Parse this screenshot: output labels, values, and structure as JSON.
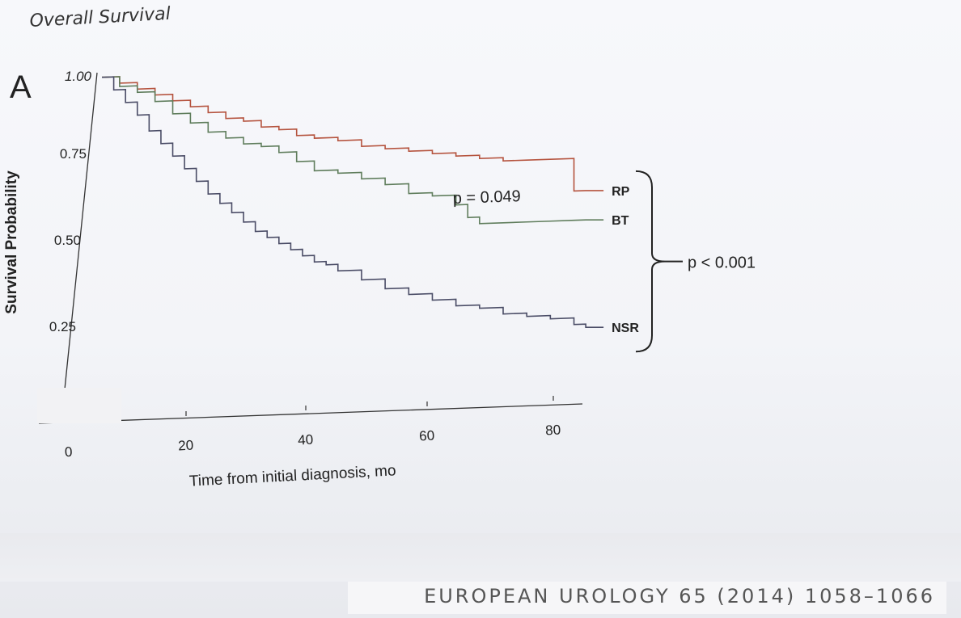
{
  "slide": {
    "title": "Overall Survival",
    "panel_label": "A",
    "citation": "EUROPEAN UROLOGY 65 (2014) 1058–1066"
  },
  "chart_data": {
    "type": "line",
    "step": true,
    "xlabel": "Time from initial diagnosis, mo",
    "ylabel": "Survival Probability",
    "xlim": [
      0,
      85
    ],
    "ylim": [
      0,
      1.0
    ],
    "x_ticks": [
      0,
      20,
      40,
      60,
      80
    ],
    "y_ticks": [
      "0.25",
      "0.50",
      "0.75",
      "1.00"
    ],
    "series": [
      {
        "name": "RP",
        "color": "#b5533e",
        "x": [
          0,
          3,
          6,
          9,
          12,
          15,
          18,
          21,
          24,
          27,
          30,
          33,
          36,
          40,
          44,
          48,
          52,
          56,
          60,
          64,
          68,
          72,
          76,
          80,
          82
        ],
        "y": [
          1.0,
          0.98,
          0.96,
          0.94,
          0.92,
          0.9,
          0.88,
          0.86,
          0.85,
          0.83,
          0.82,
          0.8,
          0.79,
          0.78,
          0.76,
          0.75,
          0.74,
          0.73,
          0.72,
          0.71,
          0.7,
          0.7,
          0.7,
          0.6,
          0.6
        ]
      },
      {
        "name": "BT",
        "color": "#5f7d5c",
        "x": [
          0,
          3,
          6,
          9,
          12,
          15,
          18,
          21,
          24,
          27,
          30,
          33,
          36,
          40,
          44,
          48,
          52,
          56,
          60,
          62,
          64,
          68,
          72,
          76,
          80,
          82
        ],
        "y": [
          1.0,
          0.97,
          0.95,
          0.92,
          0.88,
          0.85,
          0.82,
          0.8,
          0.78,
          0.77,
          0.75,
          0.72,
          0.69,
          0.68,
          0.66,
          0.64,
          0.61,
          0.6,
          0.57,
          0.53,
          0.51,
          0.51,
          0.51,
          0.51,
          0.51,
          0.51
        ]
      },
      {
        "name": "NSR",
        "color": "#4a4c66",
        "x": [
          0,
          2,
          4,
          6,
          8,
          10,
          12,
          14,
          16,
          18,
          20,
          22,
          24,
          26,
          28,
          30,
          32,
          34,
          36,
          38,
          40,
          44,
          48,
          52,
          56,
          60,
          64,
          68,
          72,
          76,
          80,
          82
        ],
        "y": [
          1.0,
          0.96,
          0.92,
          0.88,
          0.83,
          0.79,
          0.75,
          0.71,
          0.67,
          0.63,
          0.6,
          0.57,
          0.54,
          0.51,
          0.49,
          0.47,
          0.45,
          0.43,
          0.41,
          0.4,
          0.38,
          0.35,
          0.32,
          0.3,
          0.28,
          0.26,
          0.25,
          0.23,
          0.22,
          0.21,
          0.19,
          0.18
        ]
      }
    ],
    "annotations": [
      {
        "text": "p = 0.049",
        "between": [
          "RP",
          "BT"
        ]
      },
      {
        "text": "p < 0.001",
        "between": [
          "RP",
          "NSR"
        ]
      }
    ]
  }
}
